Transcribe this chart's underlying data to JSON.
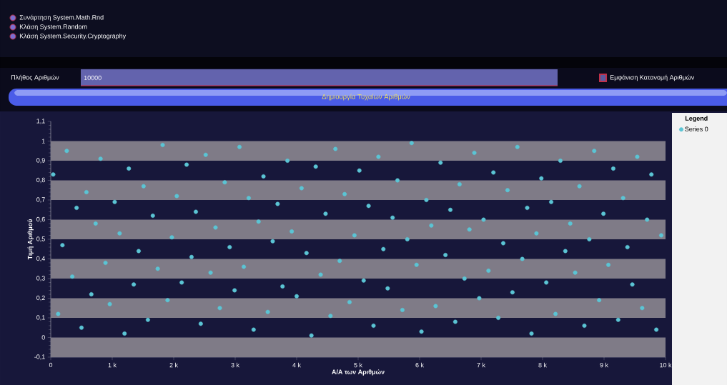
{
  "chart_data": {
    "type": "scatter",
    "xlabel": "Α/Α των Αριθμών",
    "ylabel": "Τιμή Αριθμού",
    "legend_title": "Legend",
    "legend": "right",
    "annotations": [
      "Συνάρτηση System.Math.Rnd",
      "Κλάση System.Random",
      "Κλάση System.Security.Cryptography",
      "Πλήθος Αριθμών",
      "10000",
      "Εμφάνιση Κατανομή Αριθμών",
      "Δημιουργία Τυχαίων Αριθμών"
    ],
    "xlim": [
      0,
      10000
    ],
    "xticks": [
      0,
      {
        "value": 1000,
        "label": "1 k"
      },
      {
        "value": 2000,
        "label": "2 k"
      },
      {
        "value": 3000,
        "label": "3 k"
      },
      {
        "value": 4000,
        "label": "4 k"
      },
      {
        "value": 5000,
        "label": "5 k"
      },
      {
        "value": 6000,
        "label": "6 k"
      },
      {
        "value": 7000,
        "label": "7 k"
      },
      {
        "value": 8000,
        "label": "8 k"
      },
      {
        "value": 9000,
        "label": "9 k"
      },
      {
        "value": 10000,
        "label": "10 k"
      }
    ],
    "ylim": [
      -0.1,
      1.1
    ],
    "yticks": [
      {
        "value": -0.1,
        "label": "-0,1"
      },
      0,
      {
        "value": 0.1,
        "label": "0,1"
      },
      {
        "value": 0.2,
        "label": "0,2"
      },
      {
        "value": 0.3,
        "label": "0,3"
      },
      {
        "value": 0.4,
        "label": "0,4"
      },
      {
        "value": 0.5,
        "label": "0,5"
      },
      {
        "value": 0.6,
        "label": "0,6"
      },
      {
        "value": 0.7,
        "label": "0,7"
      },
      {
        "value": 0.8,
        "label": "0,8"
      },
      {
        "value": 0.9,
        "label": "0,9"
      },
      1,
      {
        "value": 1.1,
        "label": "1,1"
      }
    ],
    "bands": [
      {
        "axis": "y",
        "from": -0.1,
        "to": 0,
        "color": "#7f7b87"
      },
      {
        "axis": "y",
        "from": 0.1,
        "to": 0.2,
        "color": "#7f7b87"
      },
      {
        "axis": "y",
        "from": 0.3,
        "to": 0.4,
        "color": "#7f7b87"
      },
      {
        "axis": "y",
        "from": 0.5,
        "to": 0.6,
        "color": "#7f7b87"
      },
      {
        "axis": "y",
        "from": 0.7,
        "to": 0.8,
        "color": "#7f7b87"
      },
      {
        "axis": "y",
        "from": 0.9,
        "to": 1.0,
        "color": "#7f7b87"
      }
    ],
    "series": [
      {
        "name": "Series 0",
        "color": "#5bc4d4",
        "x": [
          40,
          120,
          190,
          260,
          350,
          420,
          500,
          580,
          660,
          730,
          810,
          890,
          960,
          1040,
          1120,
          1200,
          1270,
          1350,
          1430,
          1510,
          1580,
          1660,
          1740,
          1820,
          1900,
          1970,
          2050,
          2130,
          2210,
          2290,
          2360,
          2440,
          2520,
          2600,
          2680,
          2750,
          2830,
          2910,
          2990,
          3070,
          3140,
          3220,
          3300,
          3380,
          3460,
          3530,
          3610,
          3690,
          3770,
          3850,
          3920,
          4000,
          4080,
          4160,
          4240,
          4310,
          4390,
          4470,
          4550,
          4630,
          4700,
          4780,
          4860,
          4940,
          5020,
          5090,
          5170,
          5250,
          5330,
          5410,
          5480,
          5560,
          5640,
          5720,
          5800,
          5870,
          5950,
          6030,
          6110,
          6190,
          6260,
          6340,
          6420,
          6500,
          6580,
          6650,
          6730,
          6810,
          6890,
          6970,
          7040,
          7120,
          7200,
          7280,
          7360,
          7430,
          7510,
          7590,
          7670,
          7750,
          7820,
          7900,
          7980,
          8060,
          8140,
          8210,
          8290,
          8370,
          8450,
          8530,
          8600,
          8680,
          8760,
          8840,
          8920,
          8990,
          9070,
          9150,
          9230,
          9310,
          9380,
          9460,
          9540,
          9620,
          9700,
          9770,
          9850,
          9930
        ],
        "values": [
          0.83,
          0.12,
          0.47,
          0.95,
          0.31,
          0.66,
          0.05,
          0.74,
          0.22,
          0.58,
          0.91,
          0.38,
          0.17,
          0.69,
          0.53,
          0.02,
          0.86,
          0.27,
          0.44,
          0.77,
          0.09,
          0.62,
          0.35,
          0.98,
          0.19,
          0.51,
          0.72,
          0.28,
          0.88,
          0.41,
          0.64,
          0.07,
          0.93,
          0.33,
          0.56,
          0.15,
          0.79,
          0.46,
          0.24,
          0.97,
          0.36,
          0.71,
          0.04,
          0.59,
          0.82,
          0.13,
          0.49,
          0.68,
          0.26,
          0.9,
          0.54,
          0.21,
          0.76,
          0.43,
          0.01,
          0.87,
          0.32,
          0.63,
          0.11,
          0.96,
          0.39,
          0.73,
          0.18,
          0.52,
          0.85,
          0.29,
          0.67,
          0.06,
          0.92,
          0.45,
          0.25,
          0.61,
          0.8,
          0.14,
          0.5,
          0.99,
          0.37,
          0.03,
          0.7,
          0.57,
          0.16,
          0.89,
          0.42,
          0.65,
          0.08,
          0.78,
          0.3,
          0.55,
          0.94,
          0.2,
          0.6,
          0.34,
          0.84,
          0.1,
          0.48,
          0.75,
          0.23,
          0.97,
          0.4,
          0.66,
          0.02,
          0.53,
          0.81,
          0.28,
          0.69,
          0.12,
          0.9,
          0.44,
          0.58,
          0.33,
          0.77,
          0.06,
          0.5,
          0.95,
          0.19,
          0.63,
          0.37,
          0.86,
          0.09,
          0.71,
          0.46,
          0.27,
          0.92,
          0.15,
          0.6,
          0.83,
          0.04,
          0.52
        ]
      }
    ]
  }
}
